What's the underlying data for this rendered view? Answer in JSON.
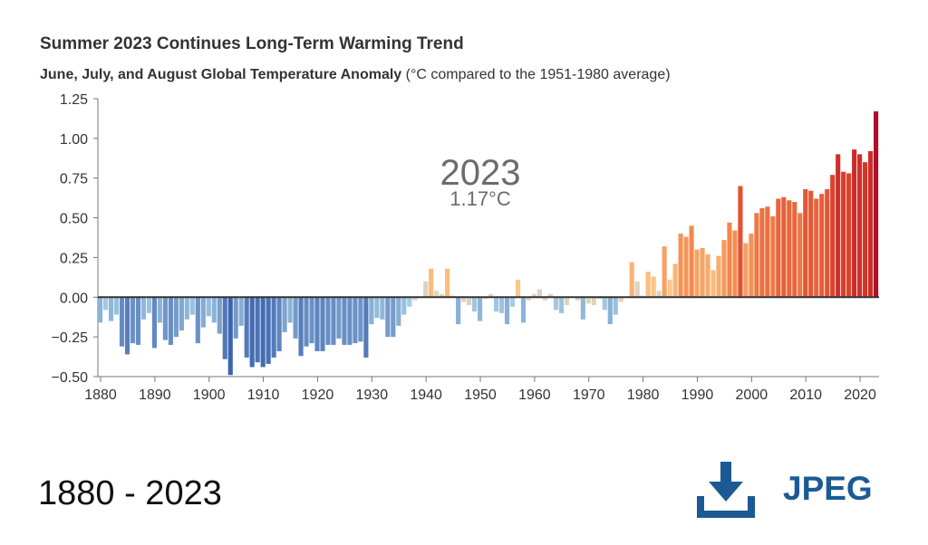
{
  "header": {
    "title": "Summer 2023 Continues Long-Term Warming Trend",
    "subtitle_bold": "June, July, and August Global Temperature Anomaly",
    "subtitle_rest": "(°C compared to the 1951-1980 average)"
  },
  "annotation": {
    "year": "2023",
    "value": "1.17°C"
  },
  "footer": {
    "range_label": "1880 - 2023",
    "download_label": "JPEG"
  },
  "icons": {
    "download": "download-icon"
  },
  "colors": {
    "accent": "#1b5a94",
    "cold": "#3b64ae",
    "warm": "#ae0f2a",
    "neutral": "#dcd4bf",
    "baseline": "#333333"
  },
  "chart_data": {
    "type": "bar",
    "title": "Summer 2023 Continues Long-Term Warming Trend",
    "xlabel": "",
    "ylabel": "",
    "x_start": 1880,
    "x_end": 2023,
    "ylim": [
      -0.5,
      1.25
    ],
    "y_ticks": [
      "1.25",
      "1.00",
      "0.75",
      "0.50",
      "0.25",
      "0.00",
      "−0.25",
      "−0.50"
    ],
    "x_ticks": [
      "1880",
      "1890",
      "1900",
      "1910",
      "1920",
      "1930",
      "1940",
      "1950",
      "1960",
      "1970",
      "1980",
      "1990",
      "2000",
      "2010",
      "2020"
    ],
    "grid": false,
    "values": [
      -0.16,
      -0.08,
      -0.15,
      -0.11,
      -0.31,
      -0.36,
      -0.29,
      -0.3,
      -0.14,
      -0.1,
      -0.32,
      -0.16,
      -0.27,
      -0.3,
      -0.25,
      -0.21,
      -0.14,
      -0.11,
      -0.29,
      -0.19,
      -0.12,
      -0.16,
      -0.23,
      -0.39,
      -0.49,
      -0.26,
      -0.18,
      -0.38,
      -0.44,
      -0.41,
      -0.44,
      -0.42,
      -0.38,
      -0.34,
      -0.22,
      -0.16,
      -0.26,
      -0.37,
      -0.31,
      -0.29,
      -0.34,
      -0.34,
      -0.3,
      -0.3,
      -0.26,
      -0.3,
      -0.3,
      -0.29,
      -0.28,
      -0.38,
      -0.17,
      -0.13,
      -0.14,
      -0.25,
      -0.25,
      -0.18,
      -0.11,
      -0.06,
      -0.02,
      0.0,
      0.1,
      0.18,
      0.04,
      0.02,
      0.18,
      0.01,
      -0.17,
      -0.03,
      -0.05,
      -0.09,
      -0.15,
      -0.01,
      0.02,
      -0.09,
      -0.1,
      -0.17,
      -0.06,
      0.11,
      -0.16,
      -0.02,
      0.02,
      0.05,
      -0.02,
      0.02,
      -0.08,
      -0.1,
      -0.05,
      0.0,
      -0.02,
      -0.14,
      -0.04,
      -0.05,
      -0.01,
      -0.08,
      -0.17,
      -0.11,
      -0.03,
      0.0,
      0.22,
      0.1,
      0.01,
      0.16,
      0.13,
      0.04,
      0.32,
      0.11,
      0.21,
      0.4,
      0.38,
      0.45,
      0.3,
      0.31,
      0.27,
      0.17,
      0.26,
      0.36,
      0.47,
      0.42,
      0.7,
      0.34,
      0.4,
      0.53,
      0.56,
      0.57,
      0.51,
      0.62,
      0.63,
      0.61,
      0.6,
      0.53,
      0.68,
      0.67,
      0.62,
      0.65,
      0.68,
      0.77,
      0.9,
      0.79,
      0.78,
      0.93,
      0.9,
      0.85,
      0.92,
      1.17
    ]
  }
}
